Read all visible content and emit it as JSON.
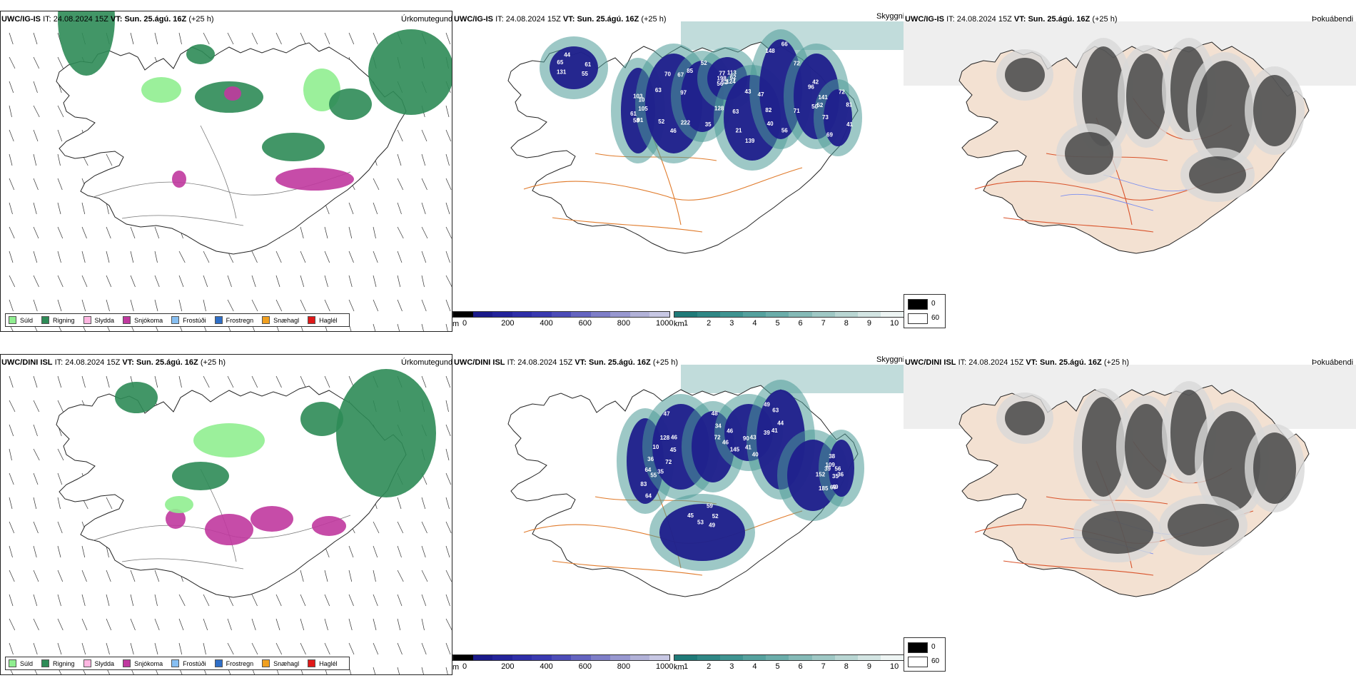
{
  "rows": [
    {
      "model": "UWC/IG-IS",
      "it_label": "IT:",
      "it_value": "24.08.2024 15Z",
      "vt_label": "VT:",
      "vt_value": "Sun. 25.ágú. 16Z",
      "lead": "(+25 h)",
      "precip_title": "Úrkomutegund",
      "cloud_title": "Skyggni",
      "fog_title": "Þokuábendi",
      "cloud_labels": [
        "105",
        "52",
        "52",
        "124",
        "63",
        "72",
        "50",
        "44",
        "41",
        "61",
        "67",
        "35",
        "77",
        "82",
        "40",
        "42",
        "55",
        "73",
        "10",
        "46",
        "85",
        "62",
        "21",
        "66",
        "52",
        "65",
        "81",
        "58",
        "70",
        "128",
        "198",
        "47",
        "56",
        "96",
        "61",
        "69",
        "103",
        "222",
        "97",
        "113",
        "139",
        "148",
        "141",
        "131",
        "72",
        "91",
        "63",
        "56",
        "52",
        "43",
        "71"
      ]
    },
    {
      "model": "UWC/DINI ISL",
      "it_label": "IT:",
      "it_value": "24.08.2024 15Z",
      "vt_label": "VT:",
      "vt_value": "Sun. 25.ágú. 16Z",
      "lead": "(+25 h)",
      "precip_title": "Úrkomutegund",
      "cloud_title": "Skyggni",
      "fog_title": "Þokuábendi",
      "cloud_labels": [
        "36",
        "72",
        "48",
        "43",
        "39",
        "38",
        "36",
        "45",
        "35",
        "45",
        "34",
        "40",
        "41",
        "39",
        "49",
        "53",
        "55",
        "10",
        "72",
        "41",
        "49",
        "152",
        "35",
        "59",
        "64",
        "128",
        "46",
        "90",
        "63",
        "69",
        "56",
        "52",
        "64",
        "46",
        "46",
        "145",
        "44",
        "185",
        "109",
        "49",
        "83",
        "47"
      ]
    }
  ],
  "precip_legend": [
    {
      "label": "Súld",
      "color": "#90ee90"
    },
    {
      "label": "Rigning",
      "color": "#2e8b57"
    },
    {
      "label": "Slydda",
      "color": "#ffb6e1"
    },
    {
      "label": "Snjókoma",
      "color": "#c0399f"
    },
    {
      "label": "Frostúði",
      "color": "#87bff2"
    },
    {
      "label": "Frostregn",
      "color": "#2f6fc7"
    },
    {
      "label": "Snæhagl",
      "color": "#f0a020"
    },
    {
      "label": "Haglél",
      "color": "#e01818"
    }
  ],
  "cloudbase_bar": {
    "unit": "m",
    "ticks": [
      "0",
      "200",
      "400",
      "600",
      "800",
      "1000"
    ],
    "colors": [
      "#000000",
      "#1a1a8a",
      "#23239a",
      "#2e2ea8",
      "#3a3ab0",
      "#4c4cb8",
      "#6464c0",
      "#7e7ec8",
      "#9898d0",
      "#b2b2d8",
      "#c8c8e4"
    ]
  },
  "visibility_bar": {
    "unit": "km",
    "ticks": [
      "1",
      "2",
      "3",
      "4",
      "5",
      "6",
      "7",
      "8",
      "9",
      "10"
    ],
    "colors": [
      "#1f7a78",
      "#2f8785",
      "#3f9491",
      "#55a19e",
      "#6badaa",
      "#85bab7",
      "#9fc8c5",
      "#b9d6d3",
      "#d3e5e3",
      "#eef5f4"
    ]
  },
  "fog_legend": {
    "values": [
      "0",
      "60"
    ],
    "colors": [
      "#000000",
      "#ffffff"
    ]
  }
}
